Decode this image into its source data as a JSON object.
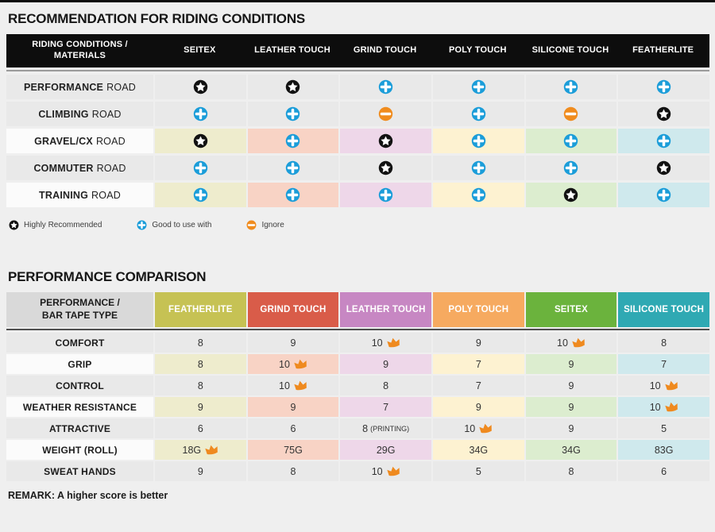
{
  "section1": {
    "title": "RECOMMENDATION FOR RIDING CONDITIONS",
    "header": {
      "label_line1": "RIDING CONDITIONS /",
      "label_line2": "MATERIALS",
      "columns": [
        "SEITEX",
        "LEATHER TOUCH",
        "GRIND TOUCH",
        "POLY TOUCH",
        "SILICONE TOUCH",
        "FEATHERLITE"
      ]
    },
    "rating_meanings": {
      "star": "Highly Recommended",
      "plus": "Good to use with",
      "minus": "Ignore"
    },
    "rows": [
      {
        "activity": "PERFORMANCE",
        "suffix": "ROAD",
        "colored": false,
        "ratings": [
          "star",
          "star",
          "plus",
          "plus",
          "plus",
          "plus"
        ]
      },
      {
        "activity": "CLIMBING",
        "suffix": "ROAD",
        "colored": false,
        "ratings": [
          "plus",
          "plus",
          "minus",
          "plus",
          "minus",
          "star"
        ]
      },
      {
        "activity": "GRAVEL/CX",
        "suffix": "ROAD",
        "colored": true,
        "ratings": [
          "star",
          "plus",
          "star",
          "plus",
          "plus",
          "plus"
        ]
      },
      {
        "activity": "COMMUTER",
        "suffix": "ROAD",
        "colored": false,
        "ratings": [
          "plus",
          "plus",
          "star",
          "plus",
          "plus",
          "star"
        ]
      },
      {
        "activity": "TRAINING",
        "suffix": "ROAD",
        "colored": true,
        "ratings": [
          "plus",
          "plus",
          "plus",
          "plus",
          "star",
          "plus"
        ]
      }
    ],
    "legend": [
      {
        "icon": "star",
        "label": "Highly Recommended"
      },
      {
        "icon": "plus",
        "label": "Good to use with"
      },
      {
        "icon": "minus",
        "label": "Ignore"
      }
    ]
  },
  "section2": {
    "title": "PERFORMANCE COMPARISON",
    "header_label_line1": "PERFORMANCE /",
    "header_label_line2": "BAR TAPE TYPE",
    "columns": [
      {
        "label": "FEATHERLITE",
        "color": "#c6c254",
        "tint": "#eeeccd"
      },
      {
        "label": "GRIND TOUCH",
        "color": "#d95c49",
        "tint": "#f8d3c5"
      },
      {
        "label": "LEATHER TOUCH",
        "color": "#c787c3",
        "tint": "#eed7e9"
      },
      {
        "label": "POLY TOUCH",
        "color": "#f6aa60",
        "tint": "#fdf2d1"
      },
      {
        "label": "SEITEX",
        "color": "#6bb33d",
        "tint": "#dcedcf"
      },
      {
        "label": "SILICONE TOUCH",
        "color": "#2fa9b3",
        "tint": "#cfe9ed"
      }
    ],
    "rows": [
      {
        "label": "COMFORT",
        "colored": false,
        "values": [
          {
            "v": "8"
          },
          {
            "v": "9"
          },
          {
            "v": "10",
            "crown": true
          },
          {
            "v": "9"
          },
          {
            "v": "10",
            "crown": true
          },
          {
            "v": "8"
          }
        ]
      },
      {
        "label": "GRIP",
        "colored": true,
        "values": [
          {
            "v": "8"
          },
          {
            "v": "10",
            "crown": true
          },
          {
            "v": "9"
          },
          {
            "v": "7"
          },
          {
            "v": "9"
          },
          {
            "v": "7"
          }
        ]
      },
      {
        "label": "CONTROL",
        "colored": false,
        "values": [
          {
            "v": "8"
          },
          {
            "v": "10",
            "crown": true
          },
          {
            "v": "8"
          },
          {
            "v": "7"
          },
          {
            "v": "9"
          },
          {
            "v": "10",
            "crown": true
          }
        ]
      },
      {
        "label": "WEATHER RESISTANCE",
        "colored": true,
        "values": [
          {
            "v": "9"
          },
          {
            "v": "9"
          },
          {
            "v": "7"
          },
          {
            "v": "9"
          },
          {
            "v": "9"
          },
          {
            "v": "10",
            "crown": true
          }
        ]
      },
      {
        "label": "ATTRACTIVE",
        "colored": false,
        "values": [
          {
            "v": "6"
          },
          {
            "v": "6"
          },
          {
            "v": "8",
            "note": "(PRINTING)"
          },
          {
            "v": "10",
            "crown": true
          },
          {
            "v": "9"
          },
          {
            "v": "5"
          }
        ]
      },
      {
        "label": "WEIGHT (ROLL)",
        "colored": true,
        "values": [
          {
            "v": "18G",
            "crown": true
          },
          {
            "v": "75G"
          },
          {
            "v": "29G"
          },
          {
            "v": "34G"
          },
          {
            "v": "34G"
          },
          {
            "v": "83G"
          }
        ]
      },
      {
        "label": "SWEAT HANDS",
        "colored": false,
        "values": [
          {
            "v": "9"
          },
          {
            "v": "8"
          },
          {
            "v": "10",
            "crown": true
          },
          {
            "v": "5"
          },
          {
            "v": "8"
          },
          {
            "v": "6"
          }
        ]
      }
    ],
    "remark": "REMARK: A higher score is better"
  },
  "colors": {
    "page_bg": "#efefef",
    "row_gray": "#e9e9e9",
    "row_light": "#fbfbfb",
    "header_black": "#0d0d0d",
    "header2_label_bg": "#d9d9d9",
    "plus_blue": "#1b9dd9",
    "ignore_orange": "#f08c1e",
    "star_black": "#121212",
    "crown_orange": "#ef8a1f",
    "column_tints_table1": [
      "#eeeccd",
      "#f8d3c5",
      "#eed7e9",
      "#fdf2d1",
      "#dcedcf",
      "#cfe9ed"
    ]
  }
}
